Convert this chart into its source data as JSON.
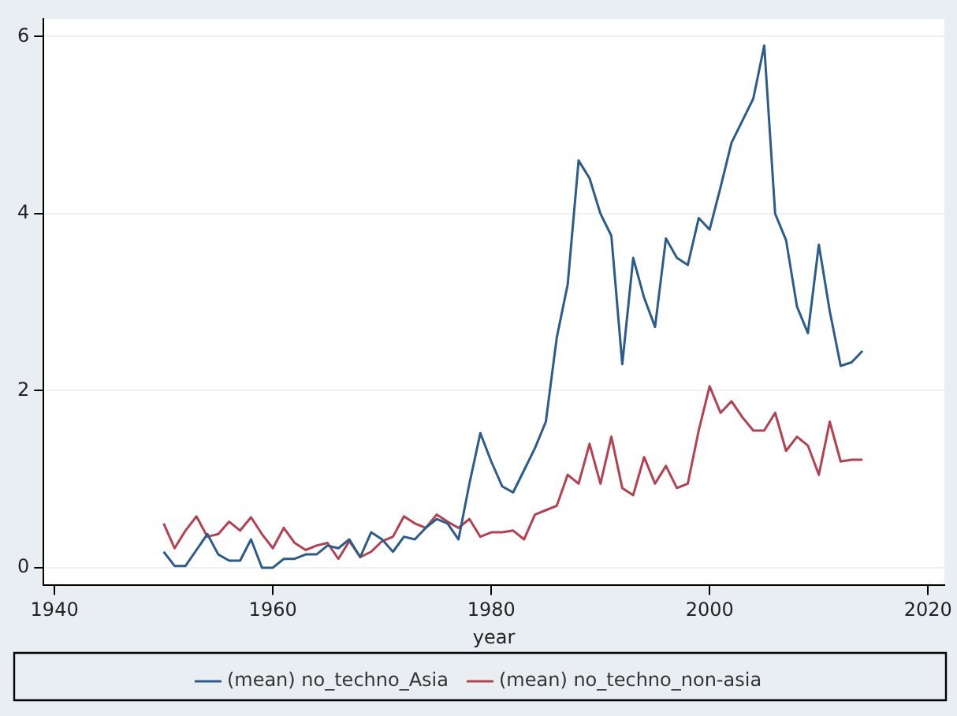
{
  "chart_data": {
    "type": "line",
    "xlabel": "year",
    "x": [
      1950,
      1951,
      1952,
      1953,
      1954,
      1955,
      1956,
      1957,
      1958,
      1959,
      1960,
      1961,
      1962,
      1963,
      1964,
      1965,
      1966,
      1967,
      1968,
      1969,
      1970,
      1971,
      1972,
      1973,
      1974,
      1975,
      1976,
      1977,
      1978,
      1979,
      1980,
      1981,
      1982,
      1983,
      1984,
      1985,
      1986,
      1987,
      1988,
      1989,
      1990,
      1991,
      1992,
      1993,
      1994,
      1995,
      1996,
      1997,
      1998,
      1999,
      2000,
      2001,
      2002,
      2003,
      2004,
      2005,
      2006,
      2007,
      2008,
      2009,
      2010,
      2011,
      2012,
      2013,
      2014
    ],
    "series": [
      {
        "name": "(mean) no_techno_Asia",
        "color": "#2b5c8a",
        "values": [
          0.18,
          0.02,
          0.02,
          0.2,
          0.38,
          0.15,
          0.08,
          0.08,
          0.32,
          0.0,
          0.0,
          0.1,
          0.1,
          0.15,
          0.15,
          0.25,
          0.22,
          0.32,
          0.12,
          0.4,
          0.32,
          0.18,
          0.35,
          0.32,
          0.45,
          0.55,
          0.5,
          0.32,
          0.95,
          1.52,
          1.2,
          0.92,
          0.85,
          1.1,
          1.35,
          1.65,
          2.6,
          3.2,
          4.6,
          4.4,
          4.0,
          3.75,
          2.3,
          3.5,
          3.05,
          2.72,
          3.72,
          3.5,
          3.42,
          3.95,
          3.82,
          4.3,
          4.8,
          5.05,
          5.3,
          5.9,
          4.0,
          3.7,
          2.95,
          2.65,
          3.65,
          2.9,
          2.28,
          2.32,
          2.45
        ]
      },
      {
        "name": "(mean) no_techno_non-asia",
        "color": "#b5404f",
        "values": [
          0.5,
          0.22,
          0.42,
          0.58,
          0.35,
          0.38,
          0.52,
          0.42,
          0.57,
          0.38,
          0.22,
          0.45,
          0.28,
          0.2,
          0.25,
          0.28,
          0.1,
          0.3,
          0.12,
          0.18,
          0.3,
          0.35,
          0.58,
          0.5,
          0.45,
          0.6,
          0.52,
          0.45,
          0.55,
          0.35,
          0.4,
          0.4,
          0.42,
          0.32,
          0.6,
          0.65,
          0.7,
          1.05,
          0.95,
          1.4,
          0.95,
          1.48,
          0.9,
          0.82,
          1.25,
          0.95,
          1.15,
          0.9,
          0.95,
          1.55,
          2.05,
          1.75,
          1.88,
          1.7,
          1.55,
          1.55,
          1.75,
          1.32,
          1.48,
          1.38,
          1.05,
          1.65,
          1.2,
          1.22,
          1.22
        ]
      }
    ],
    "xlim": [
      1939,
      2021.5
    ],
    "xticks": [
      1940,
      1960,
      1980,
      2000,
      2020
    ],
    "ylim": [
      -0.2,
      6.2
    ],
    "yticks": [
      0,
      2,
      4,
      6
    ],
    "grid": "y",
    "legend": "bottom",
    "marker": "none",
    "line_style": "solid"
  }
}
